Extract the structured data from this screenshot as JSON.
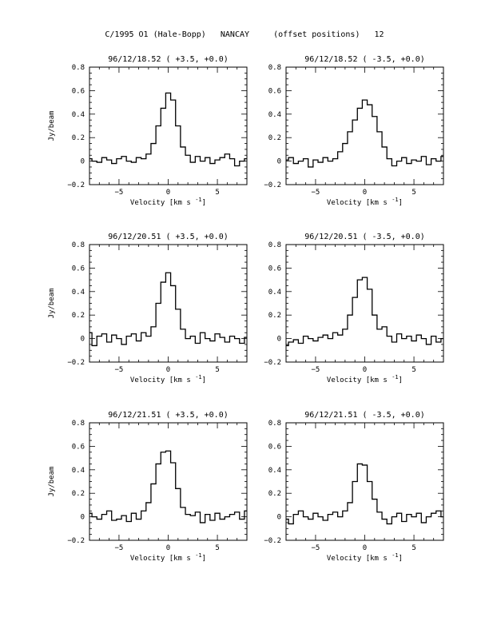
{
  "figure": {
    "title": "C/1995 O1 (Hale-Bopp)   NANCAY     (offset positions)   12"
  },
  "chart_data": [
    {
      "type": "line",
      "title": "96/12/18.52  ( +3.5, +0.0)",
      "xlabel": "Velocity [km s",
      "xlabel_sup": "-1",
      "xlabel_end": "]",
      "ylabel": "Jy/beam",
      "xlim": [
        -8,
        8
      ],
      "ylim": [
        -0.2,
        0.8
      ],
      "xticks": [
        -5,
        0,
        5
      ],
      "yticks": [
        -0.2,
        0,
        0.2,
        0.4,
        0.6,
        0.8
      ],
      "series": [
        {
          "x": [
            -8.0,
            -7.5,
            -7.0,
            -6.5,
            -6.0,
            -5.5,
            -5.0,
            -4.5,
            -4.0,
            -3.5,
            -3.0,
            -2.5,
            -2.0,
            -1.5,
            -1.0,
            -0.5,
            0.0,
            0.5,
            1.0,
            1.5,
            2.0,
            2.5,
            3.0,
            3.5,
            4.0,
            4.5,
            5.0,
            5.5,
            6.0,
            6.5,
            7.0,
            7.5,
            8.0
          ],
          "y": [
            0.02,
            0.0,
            -0.01,
            0.03,
            0.01,
            -0.02,
            0.02,
            0.04,
            0.0,
            -0.01,
            0.03,
            0.02,
            0.06,
            0.15,
            0.3,
            0.45,
            0.58,
            0.52,
            0.3,
            0.12,
            0.05,
            -0.01,
            0.04,
            0.0,
            0.03,
            -0.02,
            0.01,
            0.03,
            0.06,
            0.02,
            -0.04,
            0.0,
            0.02
          ]
        }
      ]
    },
    {
      "type": "line",
      "title": "96/12/18.52  ( -3.5, +0.0)",
      "xlabel": "Velocity [km s",
      "xlabel_sup": "-1",
      "xlabel_end": "]",
      "ylabel": "",
      "xlim": [
        -8,
        8
      ],
      "ylim": [
        -0.2,
        0.8
      ],
      "xticks": [
        -5,
        0,
        5
      ],
      "yticks": [
        -0.2,
        0,
        0.2,
        0.4,
        0.6,
        0.8
      ],
      "series": [
        {
          "x": [
            -8.0,
            -7.5,
            -7.0,
            -6.5,
            -6.0,
            -5.5,
            -5.0,
            -4.5,
            -4.0,
            -3.5,
            -3.0,
            -2.5,
            -2.0,
            -1.5,
            -1.0,
            -0.5,
            0.0,
            0.5,
            1.0,
            1.5,
            2.0,
            2.5,
            3.0,
            3.5,
            4.0,
            4.5,
            5.0,
            5.5,
            6.0,
            6.5,
            7.0,
            7.5,
            8.0
          ],
          "y": [
            0.01,
            0.03,
            -0.02,
            0.0,
            0.02,
            -0.05,
            0.01,
            -0.01,
            0.03,
            0.0,
            0.02,
            0.08,
            0.15,
            0.25,
            0.35,
            0.45,
            0.52,
            0.48,
            0.38,
            0.25,
            0.12,
            0.02,
            -0.04,
            0.0,
            0.03,
            -0.02,
            0.01,
            0.0,
            0.04,
            -0.03,
            0.02,
            0.0,
            0.04
          ]
        }
      ]
    },
    {
      "type": "line",
      "title": "96/12/20.51  ( +3.5, +0.0)",
      "xlabel": "Velocity [km s",
      "xlabel_sup": "-1",
      "xlabel_end": "]",
      "ylabel": "Jy/beam",
      "xlim": [
        -8,
        8
      ],
      "ylim": [
        -0.2,
        0.8
      ],
      "xticks": [
        -5,
        0,
        5
      ],
      "yticks": [
        -0.2,
        0,
        0.2,
        0.4,
        0.6,
        0.8
      ],
      "series": [
        {
          "x": [
            -8.0,
            -7.5,
            -7.0,
            -6.5,
            -6.0,
            -5.5,
            -5.0,
            -4.5,
            -4.0,
            -3.5,
            -3.0,
            -2.5,
            -2.0,
            -1.5,
            -1.0,
            -0.5,
            0.0,
            0.5,
            1.0,
            1.5,
            2.0,
            2.5,
            3.0,
            3.5,
            4.0,
            4.5,
            5.0,
            5.5,
            6.0,
            6.5,
            7.0,
            7.5,
            8.0
          ],
          "y": [
            0.05,
            -0.06,
            0.02,
            0.04,
            -0.03,
            0.03,
            0.0,
            -0.05,
            0.02,
            0.04,
            -0.02,
            0.05,
            0.02,
            0.1,
            0.3,
            0.48,
            0.56,
            0.45,
            0.25,
            0.08,
            0.0,
            0.02,
            -0.04,
            0.05,
            0.0,
            -0.02,
            0.04,
            0.01,
            -0.03,
            0.02,
            0.0,
            -0.04,
            0.01
          ]
        }
      ]
    },
    {
      "type": "line",
      "title": "96/12/20.51  ( -3.5, +0.0)",
      "xlabel": "Velocity [km s",
      "xlabel_sup": "-1",
      "xlabel_end": "]",
      "ylabel": "",
      "xlim": [
        -8,
        8
      ],
      "ylim": [
        -0.2,
        0.8
      ],
      "xticks": [
        -5,
        0,
        5
      ],
      "yticks": [
        -0.2,
        0,
        0.2,
        0.4,
        0.6,
        0.8
      ],
      "series": [
        {
          "x": [
            -8.0,
            -7.5,
            -7.0,
            -6.5,
            -6.0,
            -5.5,
            -5.0,
            -4.5,
            -4.0,
            -3.5,
            -3.0,
            -2.5,
            -2.0,
            -1.5,
            -1.0,
            -0.5,
            0.0,
            0.5,
            1.0,
            1.5,
            2.0,
            2.5,
            3.0,
            3.5,
            4.0,
            4.5,
            5.0,
            5.5,
            6.0,
            6.5,
            7.0,
            7.5,
            8.0
          ],
          "y": [
            -0.06,
            -0.03,
            -0.01,
            -0.04,
            0.02,
            0.0,
            -0.02,
            0.01,
            0.03,
            0.0,
            0.05,
            0.03,
            0.08,
            0.2,
            0.35,
            0.5,
            0.52,
            0.42,
            0.2,
            0.08,
            0.1,
            0.02,
            -0.03,
            0.04,
            0.0,
            0.02,
            -0.02,
            0.03,
            0.0,
            -0.05,
            0.02,
            -0.03,
            0.0
          ]
        }
      ]
    },
    {
      "type": "line",
      "title": "96/12/21.51  ( +3.5, +0.0)",
      "xlabel": "Velocity [km s",
      "xlabel_sup": "-1",
      "xlabel_end": "]",
      "ylabel": "Jy/beam",
      "xlim": [
        -8,
        8
      ],
      "ylim": [
        -0.2,
        0.8
      ],
      "xticks": [
        -5,
        0,
        5
      ],
      "yticks": [
        -0.2,
        0,
        0.2,
        0.4,
        0.6,
        0.8
      ],
      "series": [
        {
          "x": [
            -8.0,
            -7.5,
            -7.0,
            -6.5,
            -6.0,
            -5.5,
            -5.0,
            -4.5,
            -4.0,
            -3.5,
            -3.0,
            -2.5,
            -2.0,
            -1.5,
            -1.0,
            -0.5,
            0.0,
            0.5,
            1.0,
            1.5,
            2.0,
            2.5,
            3.0,
            3.5,
            4.0,
            4.5,
            5.0,
            5.5,
            6.0,
            6.5,
            7.0,
            7.5,
            8.0
          ],
          "y": [
            0.03,
            0.0,
            -0.02,
            0.02,
            0.05,
            -0.03,
            -0.02,
            0.01,
            -0.04,
            0.03,
            -0.02,
            0.05,
            0.12,
            0.28,
            0.45,
            0.55,
            0.56,
            0.46,
            0.24,
            0.08,
            0.02,
            0.01,
            0.04,
            -0.05,
            0.02,
            -0.03,
            0.03,
            -0.02,
            0.0,
            0.02,
            0.04,
            -0.02,
            0.05
          ]
        }
      ]
    },
    {
      "type": "line",
      "title": "96/12/21.51  ( -3.5, +0.0)",
      "xlabel": "Velocity [km s",
      "xlabel_sup": "-1",
      "xlabel_end": "]",
      "ylabel": "",
      "xlim": [
        -8,
        8
      ],
      "ylim": [
        -0.2,
        0.8
      ],
      "xticks": [
        -5,
        0,
        5
      ],
      "yticks": [
        -0.2,
        0,
        0.2,
        0.4,
        0.6,
        0.8
      ],
      "series": [
        {
          "x": [
            -8.0,
            -7.5,
            -7.0,
            -6.5,
            -6.0,
            -5.5,
            -5.0,
            -4.5,
            -4.0,
            -3.5,
            -3.0,
            -2.5,
            -2.0,
            -1.5,
            -1.0,
            -0.5,
            0.0,
            0.5,
            1.0,
            1.5,
            2.0,
            2.5,
            3.0,
            3.5,
            4.0,
            4.5,
            5.0,
            5.5,
            6.0,
            6.5,
            7.0,
            7.5,
            8.0
          ],
          "y": [
            -0.02,
            -0.06,
            0.02,
            0.05,
            0.0,
            -0.02,
            0.03,
            0.0,
            -0.03,
            0.02,
            0.04,
            0.0,
            0.05,
            0.12,
            0.3,
            0.45,
            0.44,
            0.3,
            0.15,
            0.04,
            -0.02,
            -0.06,
            0.0,
            0.03,
            -0.04,
            0.02,
            0.0,
            0.03,
            -0.05,
            0.0,
            0.03,
            0.05,
            0.0
          ]
        }
      ]
    }
  ]
}
